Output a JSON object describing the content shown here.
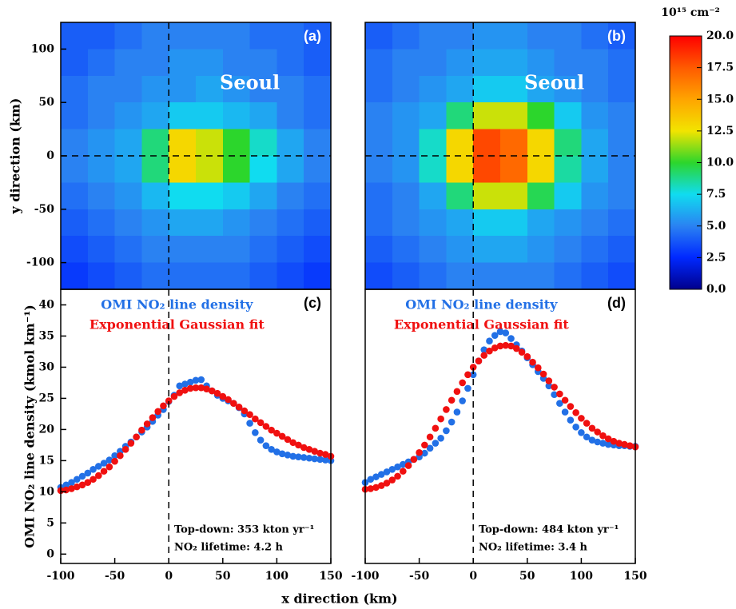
{
  "chart_data": [
    {
      "type": "heatmap",
      "panel_label": "(a)",
      "annotation": "Seoul",
      "ylabel": "y direction (km)",
      "x": [
        -87.5,
        -62.5,
        -37.5,
        -12.5,
        12.5,
        37.5,
        62.5,
        87.5,
        112.5,
        137.5
      ],
      "y": [
        112.5,
        87.5,
        62.5,
        37.5,
        12.5,
        -12.5,
        -37.5,
        -62.5,
        -87.5,
        -112.5
      ],
      "z": [
        [
          4,
          4,
          4.5,
          5,
          5,
          5,
          5,
          4.5,
          4.5,
          4
        ],
        [
          4,
          4.5,
          5,
          5,
          5.5,
          5.5,
          5,
          5,
          4.5,
          4
        ],
        [
          4.5,
          5,
          5,
          5.5,
          5.5,
          6,
          5.5,
          5,
          5,
          4.5
        ],
        [
          4.5,
          5,
          5.5,
          6,
          7,
          7,
          6.5,
          6,
          5,
          4.5
        ],
        [
          5,
          5.5,
          6,
          9,
          13,
          12,
          10,
          8,
          6,
          5
        ],
        [
          5,
          5.5,
          6,
          9,
          13,
          12,
          10,
          7.5,
          6,
          5
        ],
        [
          4.5,
          5,
          5.5,
          6.5,
          7.5,
          7.5,
          7,
          6,
          5,
          4.5
        ],
        [
          4,
          4.5,
          5,
          5.5,
          6,
          6,
          5.5,
          5,
          4.5,
          4
        ],
        [
          3.5,
          4,
          4.5,
          5,
          5,
          5,
          5,
          4.5,
          4,
          3.5
        ],
        [
          3,
          3.5,
          4,
          4.5,
          4.5,
          4.5,
          4.5,
          4,
          3.5,
          3
        ]
      ],
      "xlim": [
        -100,
        150
      ],
      "ylim": [
        -125,
        125
      ],
      "yticks": [
        -100,
        -50,
        0,
        50,
        100
      ],
      "vline": 0,
      "hline": 0
    },
    {
      "type": "heatmap",
      "panel_label": "(b)",
      "annotation": "Seoul",
      "x": [
        -87.5,
        -62.5,
        -37.5,
        -12.5,
        12.5,
        37.5,
        62.5,
        87.5,
        112.5,
        137.5
      ],
      "y": [
        112.5,
        87.5,
        62.5,
        37.5,
        12.5,
        -12.5,
        -37.5,
        -62.5,
        -87.5,
        -112.5
      ],
      "z": [
        [
          4,
          4.5,
          5,
          5,
          5.5,
          5.5,
          5,
          5,
          4.5,
          4
        ],
        [
          4.5,
          5,
          5,
          5.5,
          6,
          6,
          5.5,
          5,
          5,
          4.5
        ],
        [
          4.5,
          5,
          5.5,
          6,
          7,
          7,
          6,
          5.5,
          5,
          4.5
        ],
        [
          5,
          5.5,
          6,
          9,
          12,
          12,
          10,
          7,
          5.5,
          5
        ],
        [
          5,
          5.5,
          8,
          13,
          18,
          17,
          13,
          9,
          6,
          5
        ],
        [
          5,
          5.5,
          8,
          13,
          18,
          17,
          13,
          8.5,
          6,
          5
        ],
        [
          4.5,
          5,
          6,
          9,
          12,
          12,
          9.5,
          7,
          5.5,
          5
        ],
        [
          4.5,
          5,
          5.5,
          6,
          7,
          7,
          6,
          5.5,
          5,
          4.5
        ],
        [
          4,
          4.5,
          5,
          5.5,
          6,
          6,
          5.5,
          5,
          4.5,
          4
        ],
        [
          3.5,
          4,
          4.5,
          5,
          5,
          5,
          5,
          4.5,
          4,
          3.5
        ]
      ],
      "xlim": [
        -100,
        150
      ],
      "ylim": [
        -125,
        125
      ],
      "vline": 0,
      "hline": 0
    },
    {
      "type": "line",
      "panel_label": "(c)",
      "ylabel": "OMI NO₂ line density (kmol km⁻¹)",
      "xlabel": "x direction (km)",
      "x": [
        -100,
        -95,
        -90,
        -85,
        -80,
        -75,
        -70,
        -65,
        -60,
        -55,
        -50,
        -45,
        -40,
        -35,
        -30,
        -25,
        -20,
        -15,
        -10,
        -5,
        0,
        5,
        10,
        15,
        20,
        25,
        30,
        35,
        40,
        45,
        50,
        55,
        60,
        65,
        70,
        75,
        80,
        85,
        90,
        95,
        100,
        105,
        110,
        115,
        120,
        125,
        130,
        135,
        140,
        145,
        150
      ],
      "series": [
        {
          "name": "OMI NO₂ line density",
          "color": "#2270e6",
          "values": [
            10.7,
            11.1,
            11.5,
            12.0,
            12.5,
            13.0,
            13.6,
            14.1,
            14.6,
            15.1,
            15.8,
            16.5,
            17.3,
            18.0,
            18.8,
            19.6,
            20.4,
            21.3,
            22.3,
            23.2,
            24.5,
            25.5,
            27.0,
            27.3,
            27.6,
            27.9,
            28.0,
            27.0,
            26.2,
            25.5,
            25.0,
            24.6,
            24.2,
            23.5,
            22.5,
            21.0,
            19.5,
            18.3,
            17.4,
            16.8,
            16.4,
            16.1,
            15.9,
            15.7,
            15.6,
            15.5,
            15.4,
            15.3,
            15.2,
            15.1,
            15.0
          ]
        },
        {
          "name": "Exponential Gaussian fit",
          "color": "#f01010",
          "values": [
            10.2,
            10.3,
            10.5,
            10.8,
            11.1,
            11.5,
            12.0,
            12.6,
            13.3,
            14.0,
            14.9,
            15.8,
            16.8,
            17.8,
            18.8,
            19.9,
            20.9,
            21.9,
            22.9,
            23.8,
            24.6,
            25.3,
            25.9,
            26.3,
            26.6,
            26.7,
            26.7,
            26.5,
            26.2,
            25.8,
            25.3,
            24.8,
            24.2,
            23.6,
            23.0,
            22.4,
            21.7,
            21.1,
            20.5,
            19.9,
            19.4,
            18.9,
            18.4,
            17.9,
            17.5,
            17.1,
            16.8,
            16.5,
            16.2,
            16.0,
            15.7
          ]
        }
      ],
      "annotations": [
        "Top-down: 353 kton yr⁻¹",
        "NO₂ lifetime: 4.2 h"
      ],
      "xlim": [
        -100,
        150
      ],
      "ylim": [
        -1.5,
        42.5
      ],
      "xticks": [
        -100,
        -50,
        0,
        50,
        100,
        150
      ],
      "yticks": [
        0,
        5,
        10,
        15,
        20,
        25,
        30,
        35,
        40
      ],
      "vline": 0
    },
    {
      "type": "line",
      "panel_label": "(d)",
      "x": [
        -100,
        -95,
        -90,
        -85,
        -80,
        -75,
        -70,
        -65,
        -60,
        -55,
        -50,
        -45,
        -40,
        -35,
        -30,
        -25,
        -20,
        -15,
        -10,
        -5,
        0,
        5,
        10,
        15,
        20,
        25,
        30,
        35,
        40,
        45,
        50,
        55,
        60,
        65,
        70,
        75,
        80,
        85,
        90,
        95,
        100,
        105,
        110,
        115,
        120,
        125,
        130,
        135,
        140,
        145,
        150
      ],
      "series": [
        {
          "name": "OMI NO₂ line density",
          "color": "#2270e6",
          "values": [
            11.5,
            12.0,
            12.4,
            12.8,
            13.2,
            13.6,
            14.0,
            14.4,
            14.8,
            15.2,
            15.6,
            16.2,
            17.0,
            17.8,
            18.6,
            19.8,
            21.2,
            22.8,
            24.6,
            26.6,
            28.8,
            31.0,
            32.8,
            34.2,
            35.1,
            35.7,
            35.5,
            34.6,
            33.6,
            32.6,
            31.5,
            30.4,
            29.3,
            28.2,
            27.0,
            25.6,
            24.2,
            22.8,
            21.5,
            20.4,
            19.5,
            18.8,
            18.3,
            18.0,
            17.8,
            17.6,
            17.5,
            17.4,
            17.4,
            17.3,
            17.3
          ]
        },
        {
          "name": "Exponential Gaussian fit",
          "color": "#f01010",
          "values": [
            10.4,
            10.5,
            10.7,
            11.0,
            11.4,
            11.9,
            12.5,
            13.3,
            14.2,
            15.2,
            16.3,
            17.5,
            18.8,
            20.2,
            21.7,
            23.2,
            24.7,
            26.1,
            27.5,
            28.8,
            30.0,
            31.0,
            31.9,
            32.6,
            33.1,
            33.4,
            33.5,
            33.4,
            33.0,
            32.4,
            31.7,
            30.8,
            29.9,
            28.9,
            27.8,
            26.8,
            25.7,
            24.7,
            23.7,
            22.7,
            21.8,
            21.0,
            20.2,
            19.6,
            19.0,
            18.5,
            18.1,
            17.8,
            17.6,
            17.4,
            17.2
          ]
        }
      ],
      "annotations": [
        "Top-down: 484 kton yr⁻¹",
        "NO₂ lifetime: 3.4 h"
      ],
      "xlim": [
        -100,
        150
      ],
      "ylim": [
        -1.5,
        42.5
      ],
      "xticks": [
        -100,
        -50,
        0,
        50,
        100,
        150
      ],
      "vline": 0
    },
    {
      "type": "colorbar",
      "title": "10¹⁵ cm⁻²",
      "clim": [
        0,
        20
      ],
      "ticks": [
        {
          "value": 0,
          "label": "0.0"
        },
        {
          "value": 2.5,
          "label": "2.5"
        },
        {
          "value": 5,
          "label": "5.0"
        },
        {
          "value": 7.5,
          "label": "7.5"
        },
        {
          "value": 10,
          "label": "10.0"
        },
        {
          "value": 12.5,
          "label": "12.5"
        },
        {
          "value": 15,
          "label": "15.0"
        },
        {
          "value": 17.5,
          "label": "17.5"
        },
        {
          "value": 20,
          "label": "20.0"
        }
      ],
      "colors": [
        "#00008c",
        "#0028ff",
        "#2a82f2",
        "#10dcf0",
        "#2cd62c",
        "#f2e400",
        "#ffa400",
        "#ff5a00",
        "#ff0000"
      ]
    }
  ]
}
